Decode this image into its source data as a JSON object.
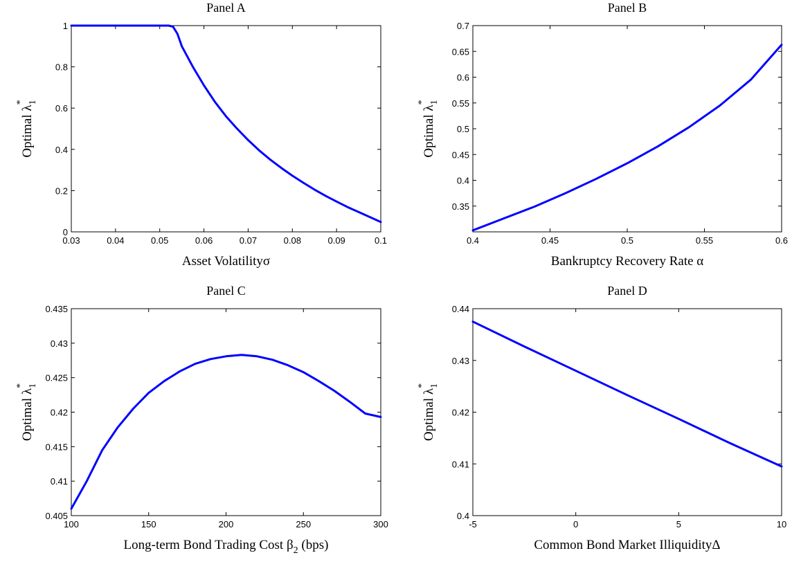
{
  "chart_data": [
    {
      "type": "line",
      "title": "Panel A",
      "xlabel": "Asset Volatilityσ",
      "ylabel": {
        "main": "Optimal  λ",
        "sup": "*",
        "sub": "1"
      },
      "xlim": [
        0.03,
        0.1
      ],
      "ylim": [
        0,
        1
      ],
      "xticks": [
        0.03,
        0.04,
        0.05,
        0.06,
        0.07,
        0.08,
        0.09,
        0.1
      ],
      "xtick_labels": [
        "0.03",
        "0.04",
        "0.05",
        "0.06",
        "0.07",
        "0.08",
        "0.09",
        "0.1"
      ],
      "yticks": [
        0,
        0.2,
        0.4,
        0.6,
        0.8,
        1
      ],
      "ytick_labels": [
        "0",
        "0.2",
        "0.4",
        "0.6",
        "0.8",
        "1"
      ],
      "grid": false,
      "color": "#0000ff",
      "x": [
        0.03,
        0.04,
        0.05,
        0.052,
        0.053,
        0.054,
        0.055,
        0.0575,
        0.06,
        0.0625,
        0.065,
        0.0675,
        0.07,
        0.0725,
        0.075,
        0.0775,
        0.08,
        0.0825,
        0.085,
        0.0875,
        0.09,
        0.0925,
        0.095,
        0.0975,
        0.1
      ],
      "y": [
        1,
        1,
        1,
        1,
        0.995,
        0.96,
        0.9,
        0.8,
        0.71,
        0.63,
        0.56,
        0.5,
        0.445,
        0.395,
        0.35,
        0.31,
        0.272,
        0.238,
        0.205,
        0.175,
        0.147,
        0.12,
        0.096,
        0.072,
        0.048
      ]
    },
    {
      "type": "line",
      "title": "Panel B",
      "xlabel": "Bankruptcy Recovery Rate  α",
      "ylabel": {
        "main": "Optimal  λ",
        "sup": "*",
        "sub": "1"
      },
      "xlim": [
        0.4,
        0.6
      ],
      "ylim": [
        0.3,
        0.7
      ],
      "xticks": [
        0.4,
        0.45,
        0.5,
        0.55,
        0.6
      ],
      "xtick_labels": [
        "0.4",
        "0.45",
        "0.5",
        "0.55",
        "0.6"
      ],
      "yticks": [
        0.35,
        0.4,
        0.45,
        0.5,
        0.55,
        0.6,
        0.65,
        0.7
      ],
      "ytick_labels": [
        "0.35",
        "0.4",
        "0.45",
        "0.5",
        "0.55",
        "0.6",
        "0.65",
        "0.7"
      ],
      "grid": false,
      "color": "#0000ff",
      "x": [
        0.4,
        0.42,
        0.44,
        0.46,
        0.48,
        0.5,
        0.52,
        0.54,
        0.56,
        0.58,
        0.6
      ],
      "y": [
        0.303,
        0.326,
        0.349,
        0.375,
        0.403,
        0.433,
        0.466,
        0.503,
        0.545,
        0.595,
        0.663
      ]
    },
    {
      "type": "line",
      "title": "Panel C",
      "xlabel": {
        "main": "Long-term Bond Trading Cost  β",
        "sub": "2",
        "tail": " (bps)"
      },
      "ylabel": {
        "main": "Optimal  λ",
        "sup": "*",
        "sub": "1"
      },
      "xlim": [
        100,
        300
      ],
      "ylim": [
        0.405,
        0.435
      ],
      "xticks": [
        100,
        150,
        200,
        250,
        300
      ],
      "xtick_labels": [
        "100",
        "150",
        "200",
        "250",
        "300"
      ],
      "yticks": [
        0.405,
        0.41,
        0.415,
        0.42,
        0.425,
        0.43,
        0.435
      ],
      "ytick_labels": [
        "0.405",
        "0.41",
        "0.415",
        "0.42",
        "0.425",
        "0.43",
        "0.435"
      ],
      "grid": false,
      "color": "#0000ff",
      "x": [
        100,
        110,
        120,
        130,
        140,
        150,
        160,
        170,
        180,
        190,
        200,
        210,
        220,
        230,
        240,
        250,
        260,
        270,
        280,
        290,
        300
      ],
      "y": [
        0.406,
        0.41,
        0.4145,
        0.4178,
        0.4205,
        0.4228,
        0.4245,
        0.4259,
        0.427,
        0.4277,
        0.4281,
        0.4283,
        0.4281,
        0.4276,
        0.4268,
        0.4258,
        0.4245,
        0.4231,
        0.4215,
        0.4198,
        0.4193
      ]
    },
    {
      "type": "line",
      "title": "Panel D",
      "xlabel": "Common Bond Market IlliquidityΔ",
      "ylabel": {
        "main": "Optimal  λ",
        "sup": "*",
        "sub": "1"
      },
      "xlim": [
        -5,
        10
      ],
      "ylim": [
        0.4,
        0.44
      ],
      "xticks": [
        -5,
        0,
        5,
        10
      ],
      "xtick_labels": [
        "-5",
        "0",
        "5",
        "10"
      ],
      "yticks": [
        0.4,
        0.41,
        0.42,
        0.43,
        0.44
      ],
      "ytick_labels": [
        "0.4",
        "0.41",
        "0.42",
        "0.43",
        "0.44"
      ],
      "grid": false,
      "color": "#0000ff",
      "x": [
        -5,
        -2.5,
        0,
        2.5,
        5,
        7.5,
        10
      ],
      "y": [
        0.4375,
        0.4327,
        0.428,
        0.4233,
        0.4187,
        0.414,
        0.4095
      ]
    }
  ]
}
